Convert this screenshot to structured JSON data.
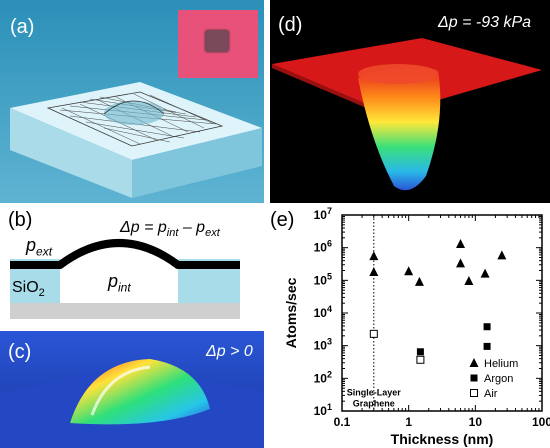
{
  "panels": {
    "a": {
      "label": "(a)"
    },
    "b": {
      "label": "(b)",
      "equation": "Δp = p",
      "eq_sub1": "int",
      "eq_mid": " – p",
      "eq_sub2": "ext",
      "p_ext": "p",
      "p_ext_sub": "ext",
      "p_int": "p",
      "p_int_sub": "int",
      "substrate": "SiO",
      "substrate_sub": "2"
    },
    "c": {
      "label": "(c)",
      "annotation": "Δp > 0"
    },
    "d": {
      "label": "(d)",
      "annotation": "Δp = -93 kPa"
    },
    "e": {
      "label": "(e)",
      "graphene_label_1": "Single-Layer",
      "graphene_label_2": "Graphene"
    }
  },
  "chart_data": {
    "type": "scatter",
    "xlabel": "Thickness (nm)",
    "ylabel": "Atoms/sec",
    "xscale": "log",
    "yscale": "log",
    "xlim": [
      0.1,
      100
    ],
    "ylim": [
      10,
      10000000
    ],
    "x_ticks": [
      {
        "v": 0.1,
        "t": "0.1"
      },
      {
        "v": 1,
        "t": "1"
      },
      {
        "v": 10,
        "t": "10"
      },
      {
        "v": 100,
        "t": "100"
      }
    ],
    "y_ticks": [
      {
        "v": 10,
        "b": "10",
        "e": "1"
      },
      {
        "v": 100,
        "b": "10",
        "e": "2"
      },
      {
        "v": 1000,
        "b": "10",
        "e": "3"
      },
      {
        "v": 10000,
        "b": "10",
        "e": "4"
      },
      {
        "v": 100000,
        "b": "10",
        "e": "5"
      },
      {
        "v": 1000000,
        "b": "10",
        "e": "6"
      },
      {
        "v": 10000000,
        "b": "10",
        "e": "7"
      }
    ],
    "reference_line_x": 0.3,
    "legend_position": "bottom-right",
    "series": [
      {
        "name": "Helium",
        "marker": "triangle",
        "points": [
          [
            0.3,
            550000
          ],
          [
            0.3,
            180000
          ],
          [
            1.0,
            190000
          ],
          [
            1.45,
            90000
          ],
          [
            6.0,
            1300000
          ],
          [
            6.0,
            330000
          ],
          [
            8.0,
            95000
          ],
          [
            14.0,
            160000
          ],
          [
            25.0,
            580000
          ]
        ]
      },
      {
        "name": "Argon",
        "marker": "square-filled",
        "points": [
          [
            1.5,
            650
          ],
          [
            15.0,
            3800
          ],
          [
            15.0,
            950
          ]
        ]
      },
      {
        "name": "Air",
        "marker": "square-open",
        "points": [
          [
            0.3,
            2300
          ],
          [
            1.5,
            370
          ]
        ]
      }
    ]
  }
}
